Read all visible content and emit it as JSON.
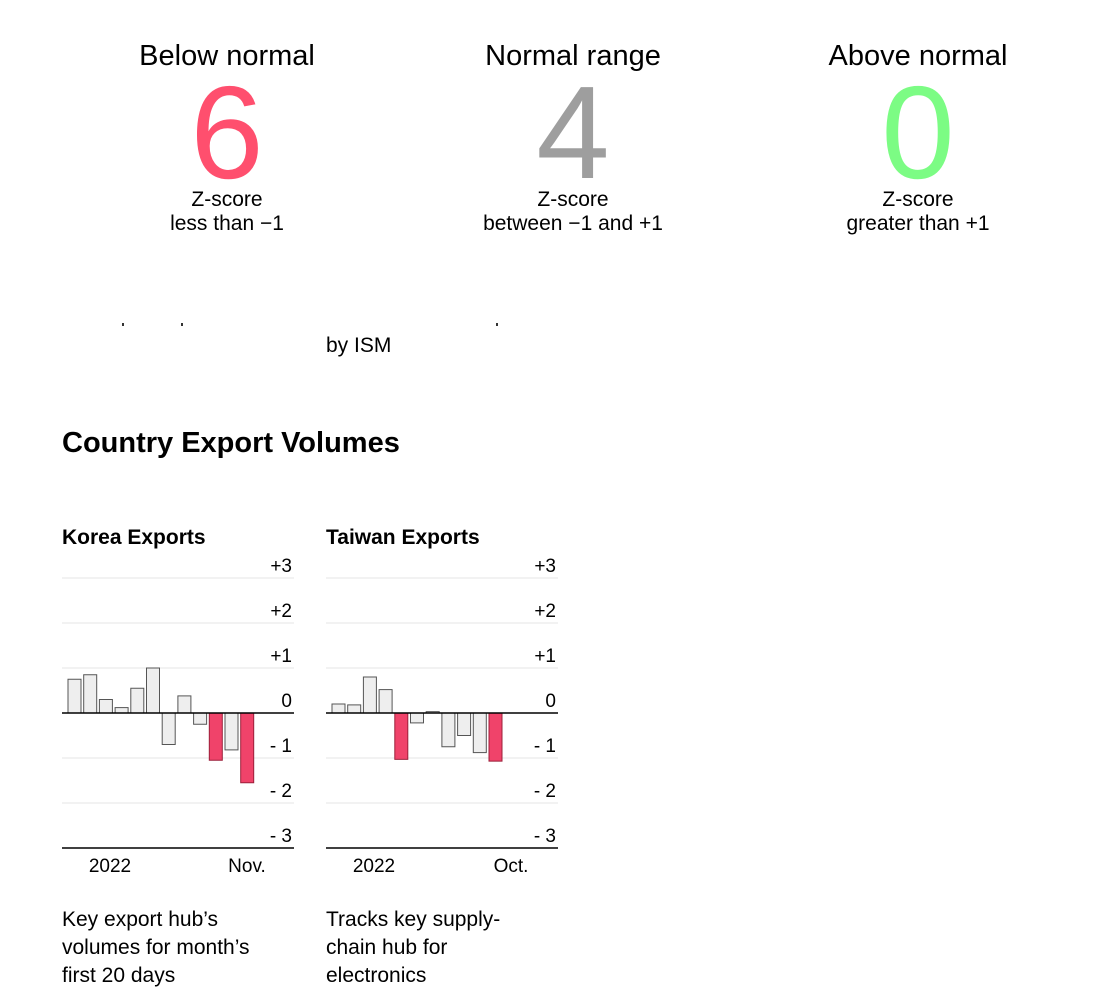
{
  "summary": [
    {
      "heading": "Below normal",
      "count": "6",
      "desc_line1": "Z-score",
      "desc_line2": "less than −1",
      "color": "#ff4f6e"
    },
    {
      "heading": "Normal range",
      "count": "4",
      "desc_line1": "Z-score",
      "desc_line2": "between −1 and +1",
      "color": "#9e9e9e"
    },
    {
      "heading": "Above normal",
      "count": "0",
      "desc_line1": "Z-score",
      "desc_line2": "greater than +1",
      "color": "#7cfc84"
    }
  ],
  "byline": "by ISM",
  "section_title": "Country Export Volumes",
  "colors": {
    "below": "#f0436a",
    "normal_fill": "#eeeeee",
    "bar_stroke": "#555555",
    "grid": "#e6e6e6",
    "zero_line": "#000000"
  },
  "chart_data": [
    {
      "type": "bar",
      "title": "Korea Exports",
      "caption_lines": [
        "Key export hub’s",
        "volumes for month’s",
        "first 20 days"
      ],
      "x_labels": [
        "2022",
        "Nov."
      ],
      "y_ticks": [
        "+3",
        "+2",
        "+1",
        "0",
        "- 1",
        "- 2",
        "- 3"
      ],
      "ylim": [
        -3,
        3
      ],
      "values": [
        0.75,
        0.85,
        0.3,
        0.12,
        0.55,
        1.0,
        -0.7,
        0.38,
        -0.25,
        -1.05,
        -0.82,
        -1.55
      ],
      "threshold": -1
    },
    {
      "type": "bar",
      "title": "Taiwan Exports",
      "caption_lines": [
        "Tracks key supply-",
        "chain hub for",
        "electronics"
      ],
      "x_labels": [
        "2022",
        "Oct."
      ],
      "y_ticks": [
        "+3",
        "+2",
        "+1",
        "0",
        "- 1",
        "- 2",
        "- 3"
      ],
      "ylim": [
        -3,
        3
      ],
      "values": [
        0.2,
        0.18,
        0.8,
        0.52,
        -1.03,
        -0.22,
        0.03,
        -0.75,
        -0.5,
        -0.88,
        -1.07
      ],
      "threshold": -1
    }
  ]
}
